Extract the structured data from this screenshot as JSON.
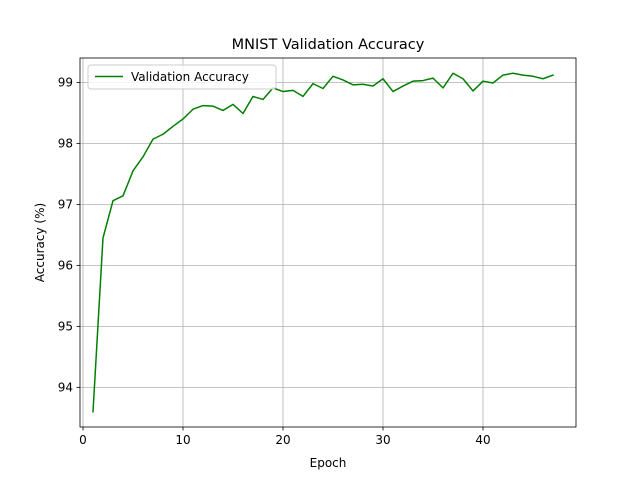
{
  "chart_data": {
    "type": "line",
    "title": "MNIST Validation Accuracy",
    "xlabel": "Epoch",
    "ylabel": "Accuracy (%)",
    "xlim": [
      -0.3,
      49.3
    ],
    "ylim": [
      93.35,
      99.4
    ],
    "xticks": [
      0,
      10,
      20,
      30,
      40
    ],
    "yticks": [
      94,
      95,
      96,
      97,
      98,
      99
    ],
    "grid": true,
    "legend": {
      "location": "upper-left"
    },
    "series": [
      {
        "name": "Validation Accuracy",
        "color": "#008000",
        "x": [
          1,
          2,
          3,
          4,
          5,
          6,
          7,
          8,
          9,
          10,
          11,
          12,
          13,
          14,
          15,
          16,
          17,
          18,
          19,
          20,
          21,
          22,
          23,
          24,
          25,
          26,
          27,
          28,
          29,
          30,
          31,
          32,
          33,
          34,
          35,
          36,
          37,
          38,
          39,
          40,
          41,
          42,
          43,
          44,
          45,
          46,
          47
        ],
        "y": [
          93.6,
          96.45,
          97.06,
          97.14,
          97.55,
          97.78,
          98.07,
          98.15,
          98.28,
          98.4,
          98.56,
          98.62,
          98.61,
          98.54,
          98.64,
          98.49,
          98.77,
          98.72,
          98.91,
          98.85,
          98.87,
          98.77,
          98.98,
          98.9,
          99.1,
          99.04,
          98.96,
          98.97,
          98.94,
          99.06,
          98.85,
          98.94,
          99.02,
          99.03,
          99.07,
          98.91,
          99.15,
          99.06,
          98.86,
          99.02,
          98.99,
          99.12,
          99.15,
          99.12,
          99.1,
          99.06,
          99.12
        ]
      }
    ]
  }
}
